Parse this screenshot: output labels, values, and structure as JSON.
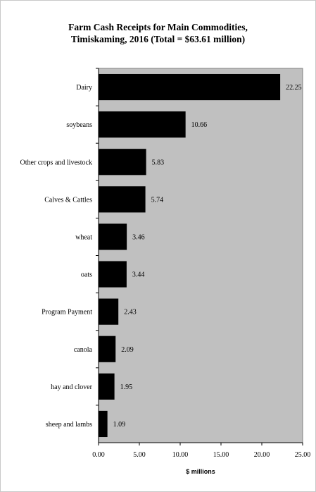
{
  "chart_data": {
    "type": "bar",
    "orientation": "horizontal",
    "title_line1": "Farm Cash Receipts for Main Commodities,",
    "title_line2": "Timiskaming, 2016 (Total = $63.61 million)",
    "categories": [
      "Dairy",
      "soybeans",
      "Other crops and livestock",
      "Calves & Cattles",
      "wheat",
      "oats",
      "Program Payment",
      "canola",
      "hay and clover",
      "sheep and lambs"
    ],
    "values": [
      22.25,
      10.66,
      5.83,
      5.74,
      3.46,
      3.44,
      2.43,
      2.09,
      1.95,
      1.09
    ],
    "value_labels": [
      "22.25",
      "10.66",
      "5.83",
      "5.74",
      "3.46",
      "3.44",
      "2.43",
      "2.09",
      "1.95",
      "1.09"
    ],
    "xlabel": "$ millions",
    "ylabel": "",
    "xlim": [
      0,
      25
    ],
    "ticks": [
      0,
      5,
      10,
      15,
      20,
      25
    ],
    "tick_labels": [
      "0.00",
      "5.00",
      "10.00",
      "15.00",
      "20.00",
      "25.00"
    ],
    "grid": false,
    "legend": "none",
    "colors": {
      "bar": "#000000",
      "plot_background": "#c0c0c0",
      "axis": "#000000"
    }
  }
}
